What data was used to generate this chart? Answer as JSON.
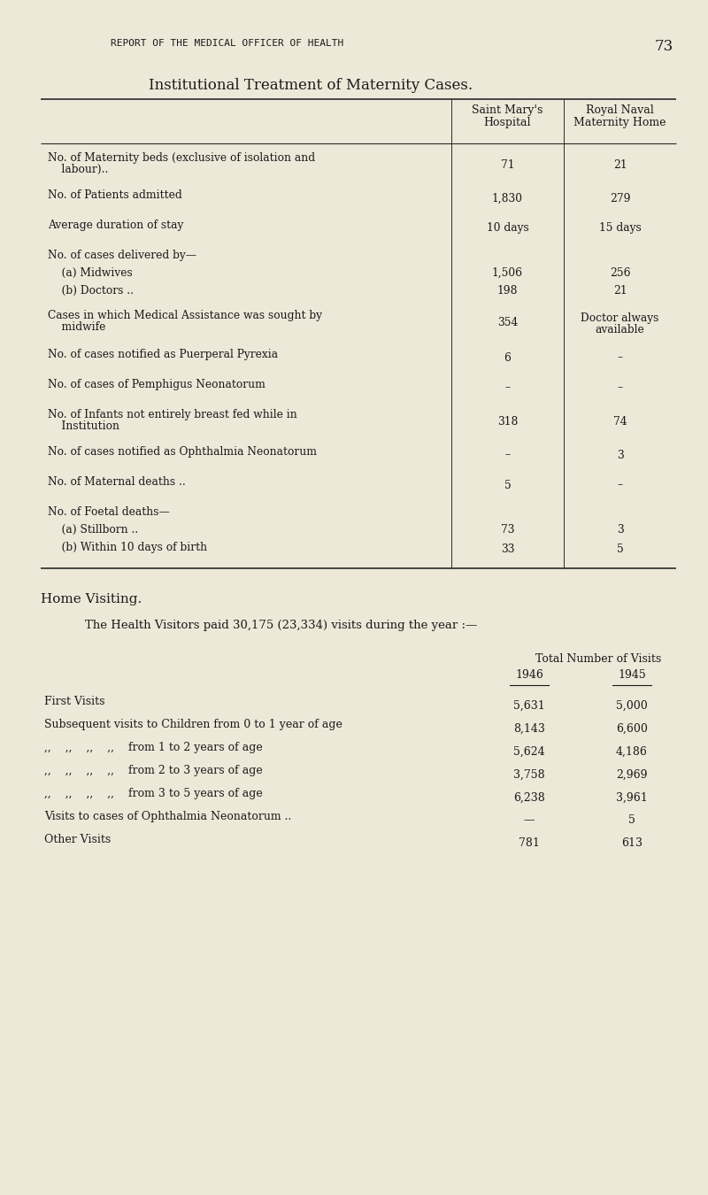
{
  "bg_color": "#ede8d8",
  "text_color": "#1a1a1a",
  "page_header": "REPORT OF THE MEDICAL OFFICER OF HEALTH",
  "page_number": "73",
  "section_title_left": "I",
  "section_title": "NSTITUTIONAL  T",
  "section_title2": "REATMENT OF  M",
  "section_title3": "ATERNITY  C",
  "section_title4": "ASES.",
  "section_title_full": "Institutional Treatment of Maternity Cases.",
  "col1_header_line1": "Saint Mary's",
  "col1_header_line2": "Hospital",
  "col2_header_line1": "Royal Naval",
  "col2_header_line2": "Maternity Home",
  "table_rows": [
    {
      "label": "No. of Maternity beds (exclusive of isolation and",
      "label2": "    labour)..",
      "col1": "71",
      "col2": "21",
      "multiline": true
    },
    {
      "label": "No. of Patients admitted",
      "label2": "",
      "col1": "1,830",
      "col2": "279",
      "multiline": false
    },
    {
      "label": "Average duration of stay",
      "label2": "",
      "col1": "10 days",
      "col2": "15 days",
      "multiline": false
    },
    {
      "label": "No. of cases delivered by—",
      "label2": "",
      "col1": "",
      "col2": "",
      "multiline": false
    },
    {
      "label": "    (a) Midwives",
      "label2": "",
      "col1": "1,506",
      "col2": "256",
      "multiline": false
    },
    {
      "label": "    (b) Doctors ..",
      "label2": "",
      "col1": "198",
      "col2": "21",
      "multiline": false
    },
    {
      "label": "Cases in which Medical Assistance was sought by",
      "label2": "    midwife",
      "col1": "354",
      "col2_line1": "Doctor always",
      "col2_line2": "available",
      "col2": "",
      "multiline": true,
      "col2_multi": true
    },
    {
      "label": "No. of cases notified as Puerperal Pyrexia",
      "label2": "",
      "col1": "6",
      "col2": "–",
      "multiline": false
    },
    {
      "label": "No. of cases of Pemphigus Neonatorum",
      "label2": "",
      "col1": "–",
      "col2": "–",
      "multiline": false
    },
    {
      "label": "No. of Infants not entirely breast fed while in",
      "label2": "    Institution",
      "col1": "318",
      "col2": "74",
      "multiline": true
    },
    {
      "label": "No. of cases notified as Ophthalmia Neonatorum",
      "label2": "",
      "col1": "–",
      "col2": "3",
      "multiline": false
    },
    {
      "label": "No. of Maternal deaths ..",
      "label2": "",
      "col1": "5",
      "col2": "–",
      "multiline": false
    },
    {
      "label": "No. of Foetal deaths—",
      "label2": "",
      "col1": "",
      "col2": "",
      "multiline": false
    },
    {
      "label": "    (a) Stillborn ..",
      "label2": "",
      "col1": "73",
      "col2": "3",
      "multiline": false
    },
    {
      "label": "    (b) Within 10 days of birth",
      "label2": "",
      "col1": "33",
      "col2": "5",
      "multiline": false
    }
  ],
  "home_visiting_title": "Home Visiting.",
  "home_visiting_intro": "The Health Visitors paid 30,175 (23,334) visits during the year :—",
  "hv_col_header_main": "Total Number of Visits",
  "hv_col_header_1946": "1946",
  "hv_col_header_1945": "1945",
  "hv_rows": [
    {
      "label": "First Visits",
      "v1946": "5,631",
      "v1945": "5,000"
    },
    {
      "label": "Subsequent visits to Children from 0 to 1 year of age",
      "v1946": "8,143",
      "v1945": "6,600"
    },
    {
      "label": ",,    ,,    ,,    ,,    from 1 to 2 years of age",
      "v1946": "5,624",
      "v1945": "4,186"
    },
    {
      "label": ",,    ,,    ,,    ,,    from 2 to 3 years of age",
      "v1946": "3,758",
      "v1945": "2,969"
    },
    {
      "label": ",,    ,,    ,,    ,,    from 3 to 5 years of age",
      "v1946": "6,238",
      "v1945": "3,961"
    },
    {
      "label": "Visits to cases of Ophthalmia Neonatorum ..",
      "v1946": "—",
      "v1945": "5"
    },
    {
      "label": "Other Visits",
      "v1946": "781",
      "v1945": "613"
    }
  ]
}
